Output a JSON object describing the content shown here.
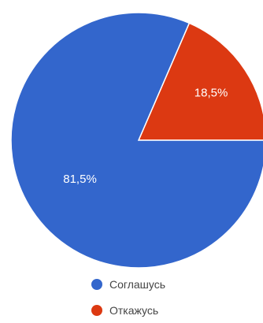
{
  "chart_data": {
    "type": "pie",
    "categories": [
      "Соглашусь",
      "Откажусь"
    ],
    "values": [
      81.5,
      18.5
    ],
    "value_labels": [
      "81,5%",
      "18,5%"
    ],
    "colors": [
      "#3366cc",
      "#dc3912"
    ],
    "title": "",
    "legend": {
      "placement": "bottom",
      "entries": [
        "Соглашусь",
        "Откажусь"
      ]
    }
  }
}
